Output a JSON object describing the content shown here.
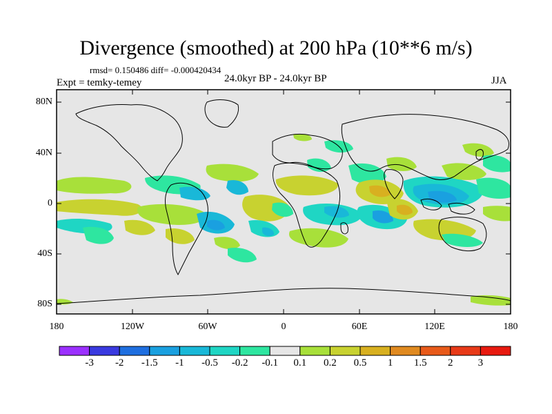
{
  "figure": {
    "title": "Divergence (smoothed) at 200 hPa (10**6 m/s)",
    "stats_text": "rmsd= 0.150486  diff= -0.000420434",
    "left_label": "Expt = temky-temey",
    "center_label": "24.0kyr BP - 24.0kyr BP",
    "right_label": "JJA"
  },
  "axes": {
    "y_ticks": [
      "80N",
      "40N",
      "0",
      "40S",
      "80S"
    ],
    "x_ticks": [
      "180",
      "120W",
      "60W",
      "0",
      "60E",
      "120E",
      "180"
    ]
  },
  "colorbar": {
    "labels": [
      "-3",
      "-2",
      "-1.5",
      "-1",
      "-0.5",
      "-0.2",
      "-0.1",
      "0.1",
      "0.2",
      "0.5",
      "1",
      "1.5",
      "2",
      "3"
    ],
    "colors": [
      "#9b30ff",
      "#3a3ae0",
      "#1f6fe0",
      "#1aa0e0",
      "#19b8d8",
      "#1fd6c4",
      "#2ee6a0",
      "#e6e6e6",
      "#a8e03a",
      "#c8d230",
      "#d8b020",
      "#e08a20",
      "#e85a1a",
      "#e83a18",
      "#e81a10"
    ]
  },
  "map": {
    "background_color": "#e6e6e6",
    "description_colors": {
      "positive_weak": "#a8e03a",
      "positive_mid": "#c8d230",
      "positive_strong": "#d8b020",
      "negative_weak": "#2ee6a0",
      "negative_mid": "#1fd6c4",
      "negative_strong": "#19b8d8",
      "negative_stronger": "#1aa0e0"
    }
  }
}
